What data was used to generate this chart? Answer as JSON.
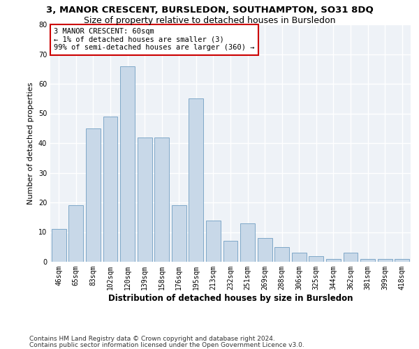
{
  "title1": "3, MANOR CRESCENT, BURSLEDON, SOUTHAMPTON, SO31 8DQ",
  "title2": "Size of property relative to detached houses in Bursledon",
  "xlabel": "Distribution of detached houses by size in Bursledon",
  "ylabel": "Number of detached properties",
  "categories": [
    "46sqm",
    "65sqm",
    "83sqm",
    "102sqm",
    "120sqm",
    "139sqm",
    "158sqm",
    "176sqm",
    "195sqm",
    "213sqm",
    "232sqm",
    "251sqm",
    "269sqm",
    "288sqm",
    "306sqm",
    "325sqm",
    "344sqm",
    "362sqm",
    "381sqm",
    "399sqm",
    "418sqm"
  ],
  "values": [
    11,
    19,
    45,
    49,
    66,
    42,
    42,
    19,
    55,
    14,
    7,
    13,
    8,
    5,
    3,
    2,
    1,
    3,
    1,
    1,
    1
  ],
  "bar_color": "#c8d8e8",
  "bar_edge_color": "#7fa8c8",
  "annotation_box_text": "3 MANOR CRESCENT: 60sqm\n← 1% of detached houses are smaller (3)\n99% of semi-detached houses are larger (360) →",
  "annotation_box_color": "#cc0000",
  "ylim": [
    0,
    80
  ],
  "yticks": [
    0,
    10,
    20,
    30,
    40,
    50,
    60,
    70,
    80
  ],
  "footer_line1": "Contains HM Land Registry data © Crown copyright and database right 2024.",
  "footer_line2": "Contains public sector information licensed under the Open Government Licence v3.0.",
  "bg_color": "#eef2f7",
  "grid_color": "#ffffff",
  "title1_fontsize": 9.5,
  "title2_fontsize": 9,
  "xlabel_fontsize": 8.5,
  "ylabel_fontsize": 8,
  "tick_fontsize": 7,
  "annotation_fontsize": 7.5,
  "footer_fontsize": 6.5
}
